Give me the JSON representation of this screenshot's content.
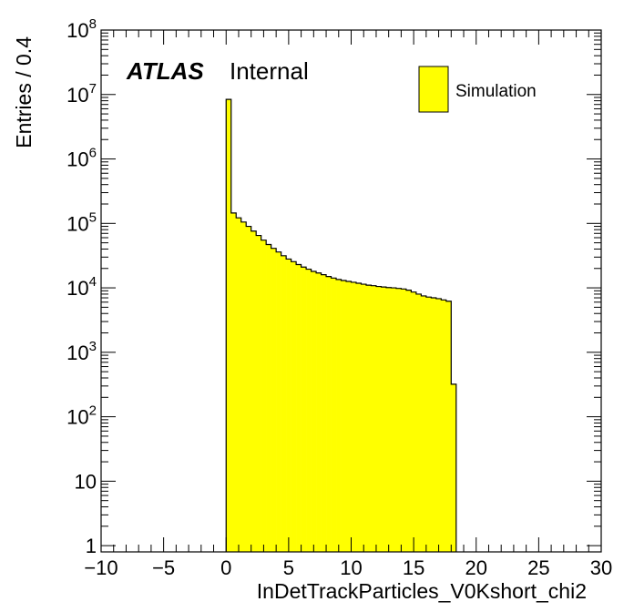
{
  "chart_data": {
    "type": "histogram",
    "title": "",
    "xlabel": "InDetTrackParticles_V0Kshort_chi2",
    "ylabel": "Entries / 0.4",
    "xlim": [
      -10,
      30
    ],
    "ylim": [
      0.8,
      100000000
    ],
    "yscale": "log",
    "grid": false,
    "bin_width": 0.4,
    "x_ticks": [
      -10,
      -5,
      0,
      5,
      10,
      15,
      20,
      25,
      30
    ],
    "x_tick_labels": [
      "−10",
      "−5",
      "0",
      "5",
      "10",
      "15",
      "20",
      "25",
      "30"
    ],
    "y_tick_labels": [
      {
        "value": 1,
        "base": "1",
        "exp": ""
      },
      {
        "value": 10,
        "base": "10",
        "exp": ""
      },
      {
        "value": 100,
        "base": "10",
        "exp": "2"
      },
      {
        "value": 1000,
        "base": "10",
        "exp": "3"
      },
      {
        "value": 10000,
        "base": "10",
        "exp": "4"
      },
      {
        "value": 100000,
        "base": "10",
        "exp": "5"
      },
      {
        "value": 1000000,
        "base": "10",
        "exp": "6"
      },
      {
        "value": 10000000,
        "base": "10",
        "exp": "7"
      },
      {
        "value": 100000000,
        "base": "10",
        "exp": "8"
      }
    ],
    "atlas_label": "ATLAS",
    "atlas_status": "Internal",
    "legend_position": "top-right",
    "fill_color": "#ffff00",
    "line_color": "#000000",
    "series": [
      {
        "name": "Simulation",
        "bin_edges_start": 0,
        "values": [
          8400000,
          145000,
          122000,
          105000,
          90000,
          76000,
          65000,
          55000,
          47000,
          41000,
          36000,
          31500,
          28000,
          25500,
          23000,
          21000,
          19500,
          18000,
          17000,
          16000,
          15000,
          14200,
          13500,
          13000,
          12600,
          12200,
          11800,
          11400,
          11000,
          10800,
          10500,
          10300,
          10100,
          10000,
          9800,
          9600,
          9200,
          8600,
          8000,
          7500,
          7200,
          7000,
          6800,
          6500,
          6200,
          320
        ]
      }
    ]
  }
}
